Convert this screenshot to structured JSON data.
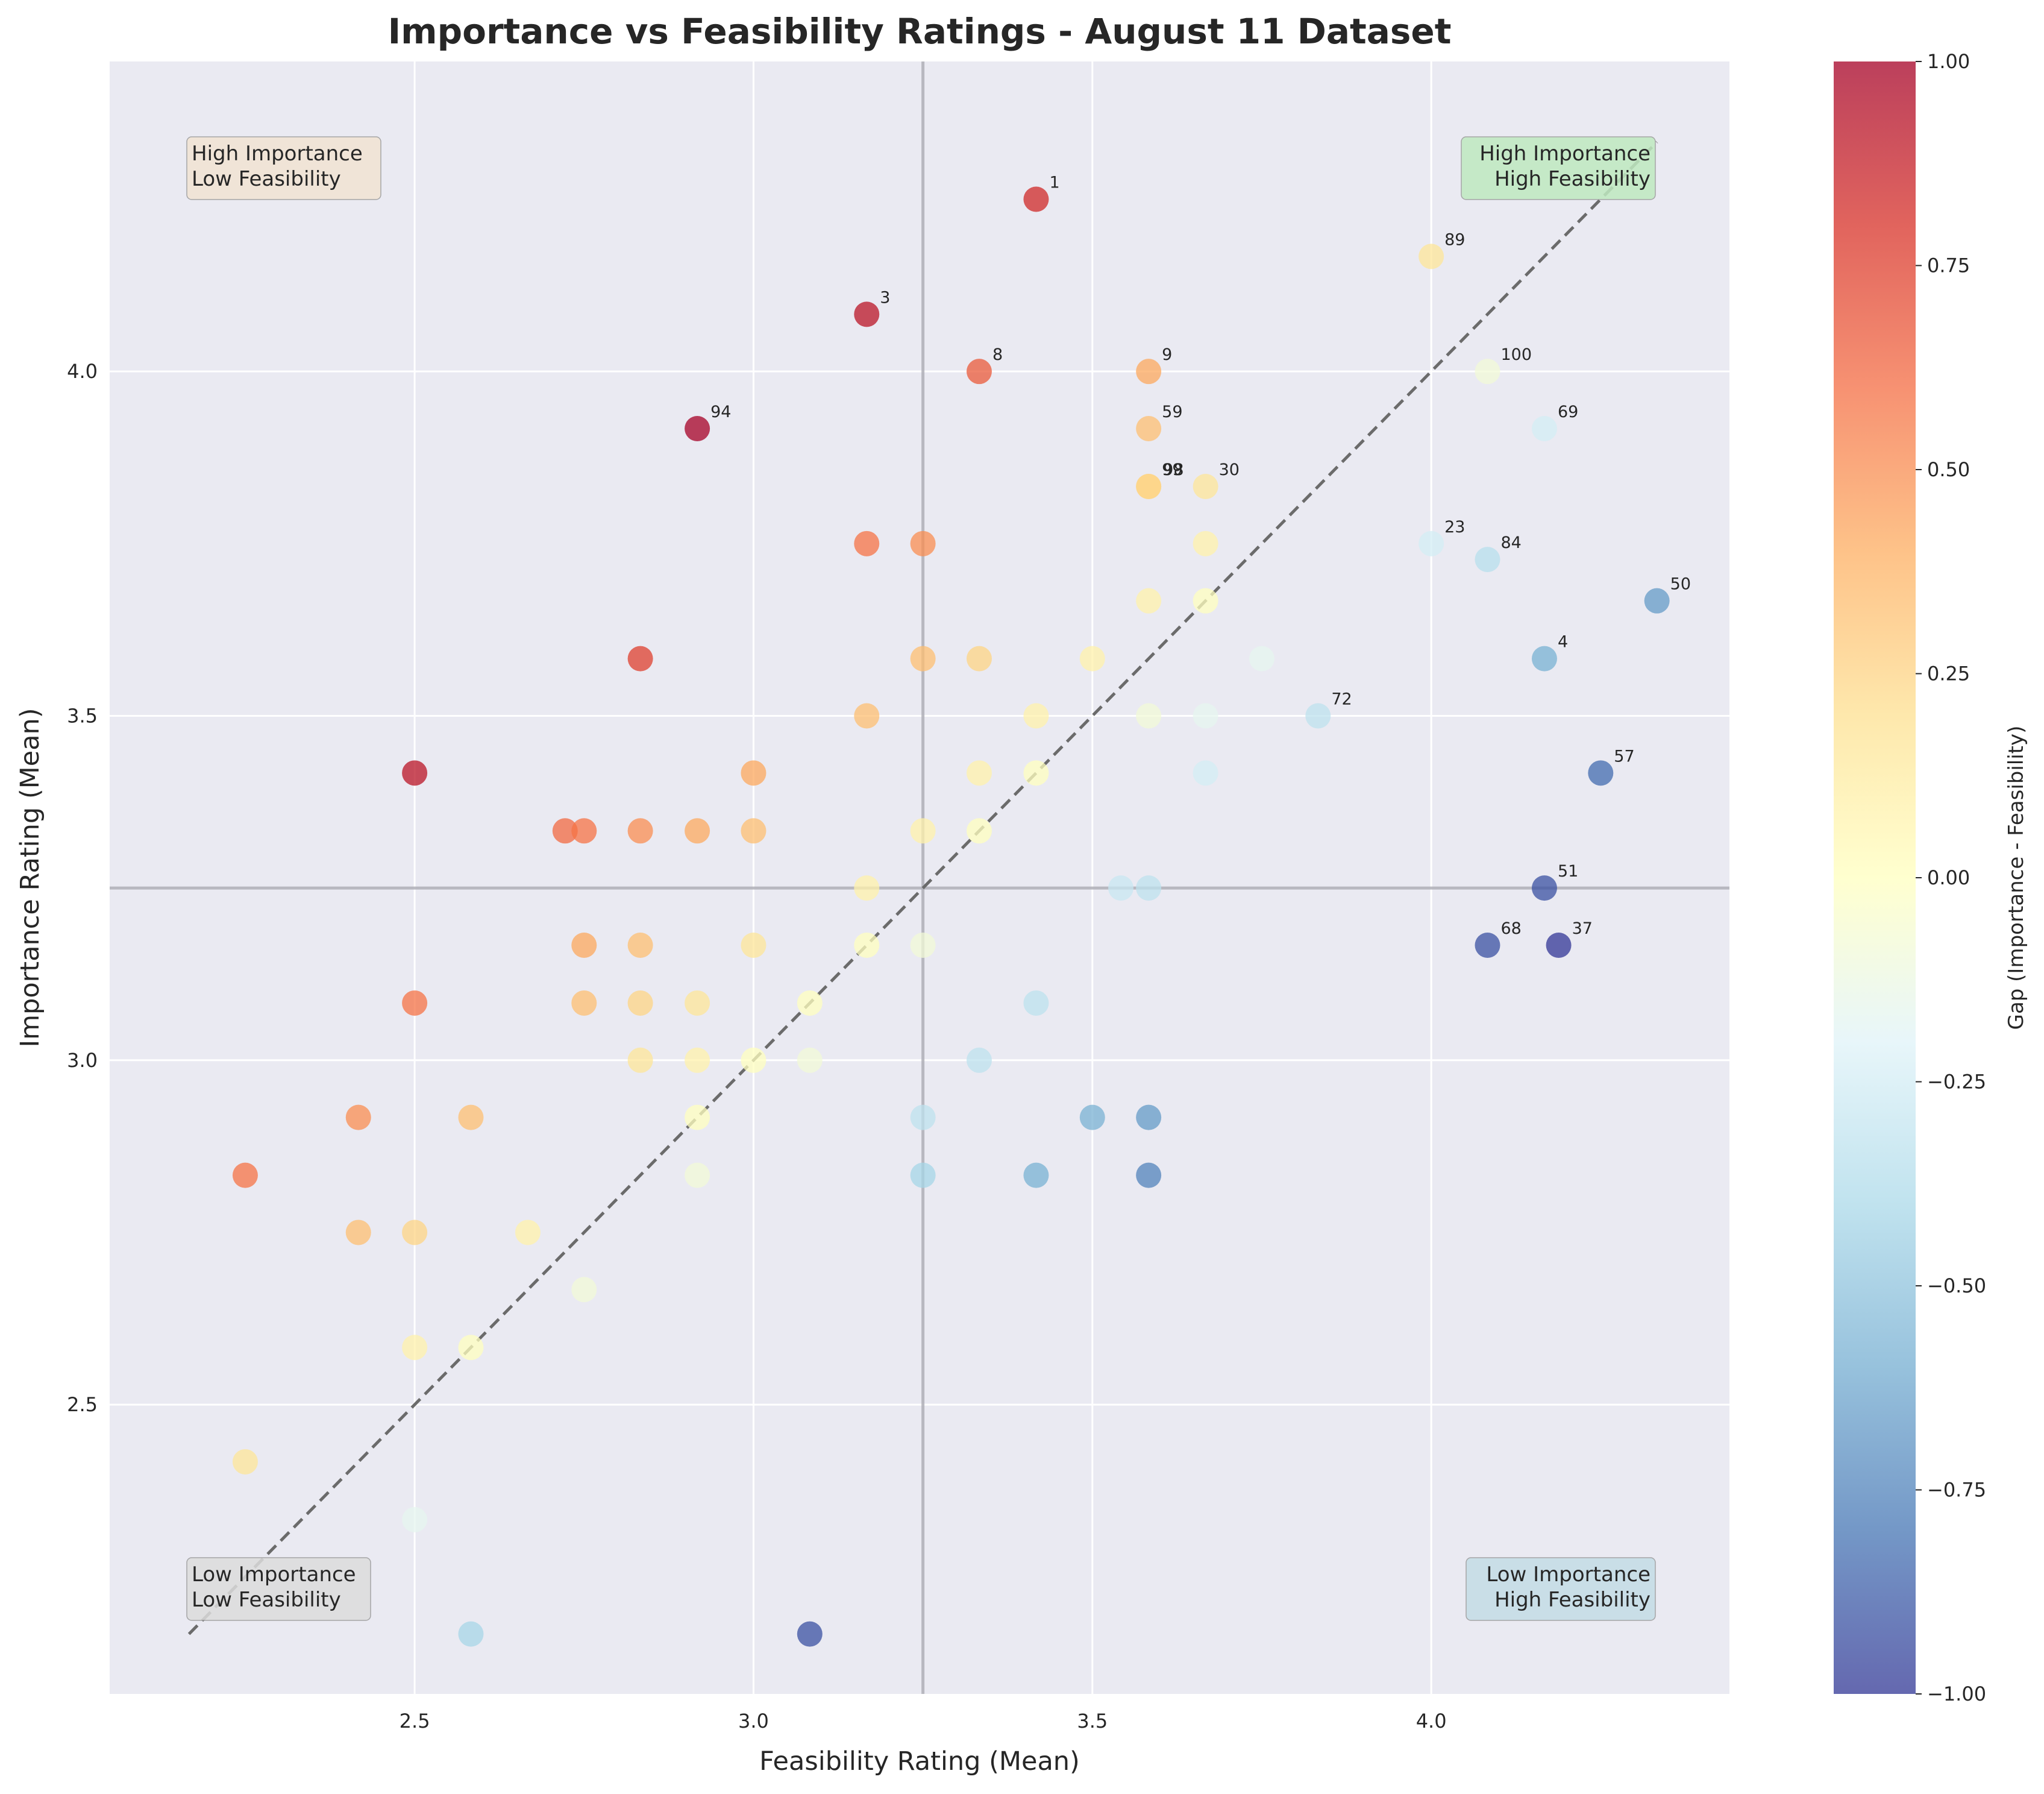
{
  "chart_data": {
    "type": "scatter",
    "title": "Importance vs Feasibility Ratings - August 11 Dataset",
    "xlabel": "Feasibility Rating (Mean)",
    "ylabel": "Importance Rating (Mean)",
    "xlim": [
      2.05,
      4.44
    ],
    "ylim": [
      2.08,
      4.45
    ],
    "x_ticks": [
      2.5,
      3.0,
      3.5,
      4.0
    ],
    "x_tick_labels": [
      "2.5",
      "3.0",
      "3.5",
      "4.0"
    ],
    "y_ticks": [
      2.5,
      3.0,
      3.5,
      4.0
    ],
    "y_tick_labels": [
      "2.5",
      "3.0",
      "3.5",
      "4.0"
    ],
    "grid": true,
    "reference_lines": {
      "x_mean": 3.25,
      "y_mean": 3.25,
      "diagonal": [
        2.167,
        4.333
      ]
    },
    "colorbar": {
      "label": "Gap (Importance - Feasibility)",
      "min": -1.0,
      "max": 1.0,
      "ticks": [
        1.0,
        0.75,
        0.5,
        0.25,
        0.0,
        -0.25,
        -0.5,
        -0.75,
        -1.0
      ],
      "tick_labels": [
        "1.00",
        "0.75",
        "0.50",
        "0.25",
        "0.00",
        "−0.25",
        "−0.50",
        "−0.75",
        "−1.00"
      ],
      "colormap": "RdYlBu_r"
    },
    "quadrant_labels": [
      {
        "id": "hi-lo",
        "text": [
          "High Importance",
          "Low Feasibility"
        ],
        "position": "top-left",
        "color": "#f2e4d3"
      },
      {
        "id": "hi-hi",
        "text": [
          "High Importance",
          "High Feasibility"
        ],
        "position": "top-right",
        "color": "#bfe9c0"
      },
      {
        "id": "lo-lo",
        "text": [
          "Low Importance",
          "Low Feasibility"
        ],
        "position": "bottom-left",
        "color": "#dcdcdc"
      },
      {
        "id": "lo-hi",
        "text": [
          "Low Importance",
          "High Feasibility"
        ],
        "position": "bottom-right",
        "color": "#c4dce6"
      }
    ],
    "points": [
      {
        "x": 3.417,
        "y": 4.25,
        "label": "1"
      },
      {
        "x": 3.167,
        "y": 4.083,
        "label": "3"
      },
      {
        "x": 3.333,
        "y": 4.0,
        "label": "8"
      },
      {
        "x": 3.583,
        "y": 4.0,
        "label": "9"
      },
      {
        "x": 2.917,
        "y": 3.917,
        "label": "94"
      },
      {
        "x": 3.583,
        "y": 3.917,
        "label": "59"
      },
      {
        "x": 3.583,
        "y": 3.833,
        "label": "99"
      },
      {
        "x": 3.583,
        "y": 3.833,
        "label": "98"
      },
      {
        "x": 3.667,
        "y": 3.833,
        "label": "30"
      },
      {
        "x": 4.0,
        "y": 4.167,
        "label": "89"
      },
      {
        "x": 4.083,
        "y": 4.0,
        "label": "100"
      },
      {
        "x": 4.167,
        "y": 3.917,
        "label": "69"
      },
      {
        "x": 4.0,
        "y": 3.75,
        "label": "23"
      },
      {
        "x": 4.083,
        "y": 3.727,
        "label": "84"
      },
      {
        "x": 4.333,
        "y": 3.667,
        "label": "50"
      },
      {
        "x": 4.167,
        "y": 3.583,
        "label": "4"
      },
      {
        "x": 3.833,
        "y": 3.5,
        "label": "72"
      },
      {
        "x": 4.25,
        "y": 3.417,
        "label": "57"
      },
      {
        "x": 4.167,
        "y": 3.25,
        "label": "51"
      },
      {
        "x": 4.083,
        "y": 3.167,
        "label": "68"
      },
      {
        "x": 4.188,
        "y": 3.167,
        "label": "37"
      },
      {
        "x": 3.167,
        "y": 3.75
      },
      {
        "x": 3.25,
        "y": 3.75
      },
      {
        "x": 3.667,
        "y": 3.75
      },
      {
        "x": 3.583,
        "y": 3.667
      },
      {
        "x": 3.667,
        "y": 3.667
      },
      {
        "x": 2.833,
        "y": 3.583
      },
      {
        "x": 3.25,
        "y": 3.583
      },
      {
        "x": 3.333,
        "y": 3.583
      },
      {
        "x": 3.5,
        "y": 3.583
      },
      {
        "x": 3.75,
        "y": 3.583
      },
      {
        "x": 3.167,
        "y": 3.5
      },
      {
        "x": 3.417,
        "y": 3.5
      },
      {
        "x": 3.583,
        "y": 3.5
      },
      {
        "x": 3.667,
        "y": 3.5
      },
      {
        "x": 2.5,
        "y": 3.417
      },
      {
        "x": 3.0,
        "y": 3.417
      },
      {
        "x": 3.333,
        "y": 3.417
      },
      {
        "x": 3.417,
        "y": 3.417
      },
      {
        "x": 3.667,
        "y": 3.417
      },
      {
        "x": 2.722,
        "y": 3.333
      },
      {
        "x": 2.75,
        "y": 3.333
      },
      {
        "x": 2.833,
        "y": 3.333
      },
      {
        "x": 2.917,
        "y": 3.333
      },
      {
        "x": 3.0,
        "y": 3.333
      },
      {
        "x": 3.25,
        "y": 3.333
      },
      {
        "x": 3.333,
        "y": 3.333
      },
      {
        "x": 3.167,
        "y": 3.25
      },
      {
        "x": 3.542,
        "y": 3.25
      },
      {
        "x": 3.583,
        "y": 3.25
      },
      {
        "x": 2.75,
        "y": 3.167
      },
      {
        "x": 2.833,
        "y": 3.167
      },
      {
        "x": 3.0,
        "y": 3.167
      },
      {
        "x": 3.167,
        "y": 3.167
      },
      {
        "x": 3.25,
        "y": 3.167
      },
      {
        "x": 2.5,
        "y": 3.083
      },
      {
        "x": 2.75,
        "y": 3.083
      },
      {
        "x": 2.833,
        "y": 3.083
      },
      {
        "x": 2.917,
        "y": 3.083
      },
      {
        "x": 3.083,
        "y": 3.083
      },
      {
        "x": 3.417,
        "y": 3.083
      },
      {
        "x": 2.833,
        "y": 3.0
      },
      {
        "x": 2.917,
        "y": 3.0
      },
      {
        "x": 3.0,
        "y": 3.0
      },
      {
        "x": 3.083,
        "y": 3.0
      },
      {
        "x": 3.333,
        "y": 3.0
      },
      {
        "x": 2.417,
        "y": 2.917
      },
      {
        "x": 2.583,
        "y": 2.917
      },
      {
        "x": 2.917,
        "y": 2.917
      },
      {
        "x": 3.25,
        "y": 2.917
      },
      {
        "x": 3.5,
        "y": 2.917
      },
      {
        "x": 3.583,
        "y": 2.917
      },
      {
        "x": 2.25,
        "y": 2.833
      },
      {
        "x": 2.917,
        "y": 2.833
      },
      {
        "x": 3.25,
        "y": 2.833
      },
      {
        "x": 3.417,
        "y": 2.833
      },
      {
        "x": 3.583,
        "y": 2.833
      },
      {
        "x": 2.417,
        "y": 2.75
      },
      {
        "x": 2.5,
        "y": 2.75
      },
      {
        "x": 2.667,
        "y": 2.75
      },
      {
        "x": 2.75,
        "y": 2.667
      },
      {
        "x": 2.5,
        "y": 2.583
      },
      {
        "x": 2.583,
        "y": 2.583
      },
      {
        "x": 2.25,
        "y": 2.417
      },
      {
        "x": 2.5,
        "y": 2.333
      },
      {
        "x": 2.583,
        "y": 2.167
      },
      {
        "x": 3.083,
        "y": 2.167
      }
    ]
  }
}
